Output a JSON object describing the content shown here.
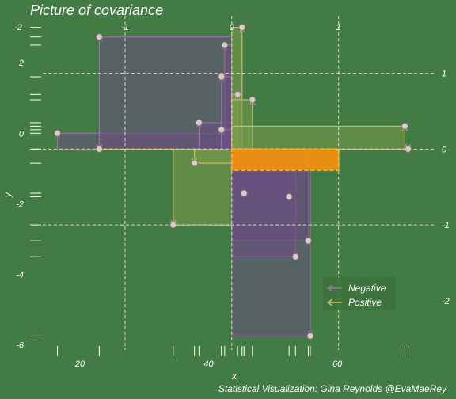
{
  "title": "Picture of covariance",
  "caption": "Statistical Visualization: Gina Reynolds @EvaMaeRey",
  "colors": {
    "background": "#427b43",
    "negative_fill": "#6a4f7f",
    "negative_stroke": "#9a72a8",
    "positive_fill": "#7a9a4a",
    "positive_stroke": "#c8c26a",
    "mean_box": "#f0900f",
    "guides": "#e8d9c0"
  },
  "chart_data": {
    "type": "scatter",
    "xlabel": "x",
    "ylabel": "y",
    "x_ticks": [
      20,
      40,
      60
    ],
    "y_ticks": [
      -6,
      -4,
      -2,
      0,
      2
    ],
    "top_ticks": [
      -2,
      -1,
      0,
      1
    ],
    "right_ticks": [
      -2,
      -1,
      0,
      1
    ],
    "xlim": [
      12,
      75
    ],
    "ylim": [
      -6.1,
      3.15
    ],
    "mean": {
      "x": 43.6,
      "y": -0.45
    },
    "sd": {
      "x": 16.6,
      "y": 2.15
    },
    "points": [
      {
        "x": 16.5,
        "y": 0.0
      },
      {
        "x": 23.0,
        "y": 2.73
      },
      {
        "x": 23.0,
        "y": -0.45
      },
      {
        "x": 34.5,
        "y": -2.6
      },
      {
        "x": 37.8,
        "y": -0.85
      },
      {
        "x": 38.5,
        "y": 0.3
      },
      {
        "x": 42.5,
        "y": 2.5
      },
      {
        "x": 42.0,
        "y": 1.6
      },
      {
        "x": 42.0,
        "y": 0.1
      },
      {
        "x": 44.5,
        "y": 1.1
      },
      {
        "x": 45.2,
        "y": 3.0
      },
      {
        "x": 45.5,
        "y": -1.7
      },
      {
        "x": 46.8,
        "y": 0.95
      },
      {
        "x": 52.5,
        "y": -1.8
      },
      {
        "x": 53.5,
        "y": -3.5
      },
      {
        "x": 55.5,
        "y": -3.05
      },
      {
        "x": 55.8,
        "y": -5.75
      },
      {
        "x": 70.5,
        "y": 0.2
      },
      {
        "x": 71.0,
        "y": -0.45
      }
    ],
    "legend": {
      "position": "bottom-right",
      "items": [
        {
          "label": "Negative",
          "key": "negative"
        },
        {
          "label": "Positive",
          "key": "positive"
        }
      ]
    }
  }
}
